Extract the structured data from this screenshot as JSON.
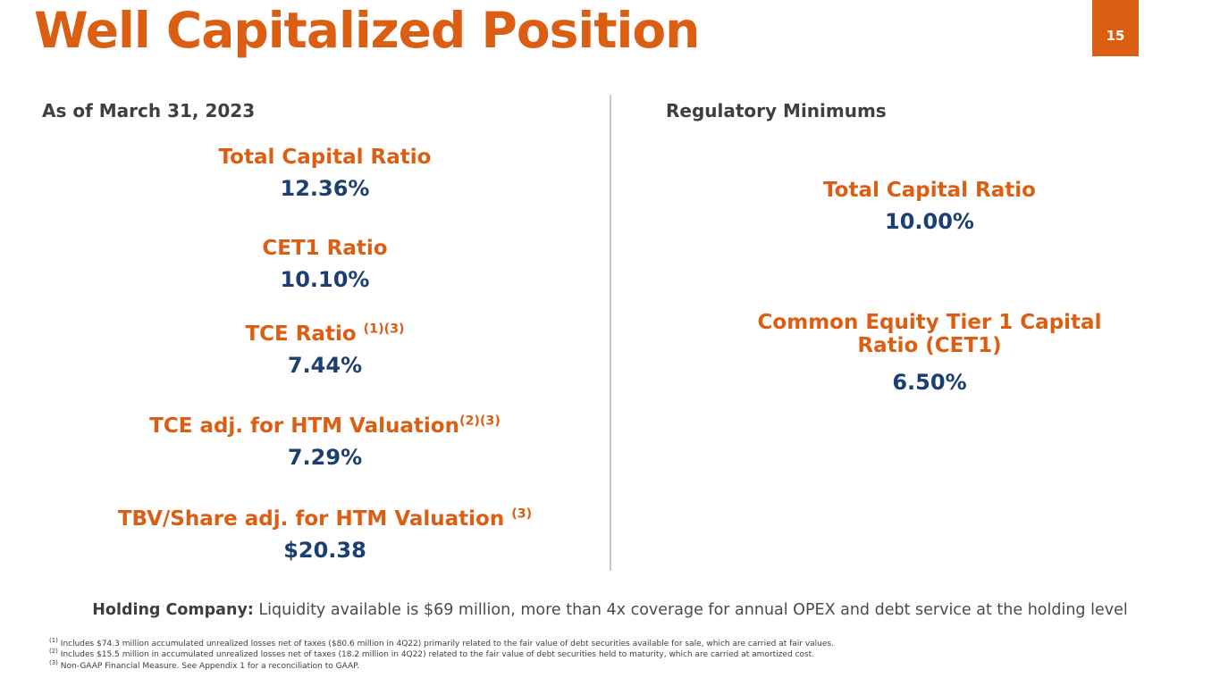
{
  "slide": {
    "title": "Well Capitalized Position",
    "page_number": "15"
  },
  "left_panel": {
    "heading": "As of March 31, 2023",
    "metrics": [
      {
        "label": "Total Capital Ratio",
        "sup": "",
        "value": "12.36%"
      },
      {
        "label": "CET1 Ratio",
        "sup": "",
        "value": "10.10%"
      },
      {
        "label": "TCE Ratio ",
        "sup": "(1)(3)",
        "value": "7.44%"
      },
      {
        "label": "TCE adj. for HTM Valuation",
        "sup": "(2)(3)",
        "value": "7.29%"
      },
      {
        "label": "TBV/Share adj. for HTM Valuation ",
        "sup": "(3)",
        "value": "$20.38"
      }
    ]
  },
  "right_panel": {
    "heading": "Regulatory Minimums",
    "metrics": [
      {
        "label": "Total Capital Ratio",
        "sup": "",
        "value": "10.00%"
      },
      {
        "label": "Common Equity Tier 1 Capital Ratio (CET1)",
        "sup": "",
        "value": "6.50%"
      }
    ]
  },
  "callout": {
    "bold": "Holding Company:",
    "text": " Liquidity available is $69 million, more than 4x coverage for annual OPEX and debt service at the holding level"
  },
  "footnotes": [
    {
      "sup": "(1)",
      "text": "Includes $74.3 million accumulated unrealized losses net of taxes ($80.6 million in 4Q22) primarily related to the fair value of debt securities available for sale, which are carried at fair values."
    },
    {
      "sup": "(2)",
      "text": "Includes $15.5 million in accumulated unrealized losses net of taxes (18.2 million in 4Q22) related to the fair value of debt securities held to maturity, which are carried at amortized cost."
    },
    {
      "sup": "(3)",
      "text": "Non-GAAP Financial Measure. See Appendix 1 for a reconciliation to GAAP."
    }
  ],
  "colors": {
    "accent_orange": "#DC5E12",
    "navy": "#1C3F72",
    "heading_gray": "#3F3F3F"
  }
}
